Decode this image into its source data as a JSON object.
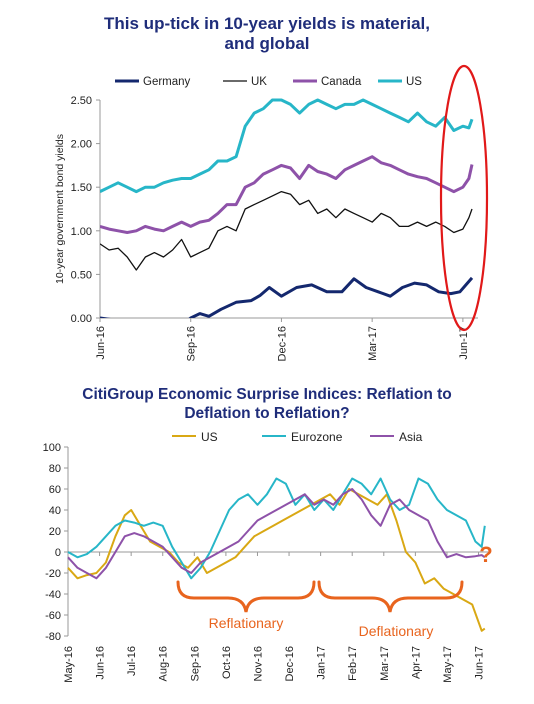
{
  "chart_data": [
    {
      "type": "line",
      "title": "This up-tick in 10-year yields is material,\nand global",
      "title_lines": [
        "This up-tick in 10-year yields is material,",
        "and global"
      ],
      "ylabel": "10-year government bond yields",
      "xlabel": "",
      "ylim": [
        0,
        2.5
      ],
      "yticks": [
        "0.00",
        "0.50",
        "1.00",
        "1.50",
        "2.00",
        "2.50"
      ],
      "xlim": [
        0,
        12.5
      ],
      "xticks": [
        {
          "label": "Jun-16",
          "x": 0
        },
        {
          "label": "Sep-16",
          "x": 3
        },
        {
          "label": "Dec-16",
          "x": 6
        },
        {
          "label": "Mar-17",
          "x": 9
        },
        {
          "label": "Jun-17",
          "x": 12
        }
      ],
      "legend_position": "top",
      "grid": false,
      "colors": {
        "Germany": "#14286e",
        "UK": "#111111",
        "Canada": "#8e52a9",
        "US": "#27b6c8"
      },
      "series": [
        {
          "name": "Germany",
          "x": [
            0,
            0.4,
            0.8,
            1.2,
            1.6,
            2.0,
            2.4,
            2.8,
            3.0,
            3.3,
            3.6,
            4.0,
            4.5,
            5.0,
            5.3,
            5.6,
            6.0,
            6.5,
            7.0,
            7.5,
            8.0,
            8.4,
            8.8,
            9.2,
            9.6,
            10.0,
            10.4,
            10.8,
            11.2,
            11.6,
            11.9,
            12.1,
            12.3
          ],
          "values": [
            0.0,
            -0.02,
            -0.05,
            -0.12,
            -0.15,
            -0.12,
            -0.1,
            -0.06,
            0.0,
            0.05,
            0.02,
            0.1,
            0.18,
            0.2,
            0.26,
            0.35,
            0.25,
            0.35,
            0.38,
            0.3,
            0.3,
            0.45,
            0.35,
            0.3,
            0.25,
            0.35,
            0.4,
            0.38,
            0.3,
            0.28,
            0.3,
            0.38,
            0.46
          ]
        },
        {
          "name": "UK",
          "x": [
            0,
            0.3,
            0.6,
            0.9,
            1.2,
            1.5,
            1.8,
            2.1,
            2.4,
            2.7,
            3.0,
            3.3,
            3.6,
            3.9,
            4.2,
            4.5,
            4.8,
            5.1,
            5.4,
            5.7,
            6.0,
            6.3,
            6.6,
            6.9,
            7.2,
            7.5,
            7.8,
            8.1,
            8.4,
            8.7,
            9.0,
            9.3,
            9.6,
            9.9,
            10.2,
            10.5,
            10.8,
            11.1,
            11.4,
            11.7,
            12.0,
            12.2,
            12.3
          ],
          "values": [
            0.85,
            0.78,
            0.8,
            0.7,
            0.55,
            0.7,
            0.75,
            0.7,
            0.78,
            0.9,
            0.7,
            0.75,
            0.8,
            1.0,
            1.05,
            1.0,
            1.25,
            1.3,
            1.35,
            1.4,
            1.45,
            1.42,
            1.3,
            1.35,
            1.2,
            1.25,
            1.15,
            1.25,
            1.2,
            1.15,
            1.1,
            1.2,
            1.15,
            1.05,
            1.05,
            1.1,
            1.05,
            1.1,
            1.05,
            0.98,
            1.02,
            1.15,
            1.25
          ]
        },
        {
          "name": "Canada",
          "x": [
            0,
            0.3,
            0.6,
            0.9,
            1.2,
            1.5,
            1.8,
            2.1,
            2.4,
            2.7,
            3.0,
            3.3,
            3.6,
            3.9,
            4.2,
            4.5,
            4.8,
            5.1,
            5.4,
            5.7,
            6.0,
            6.3,
            6.6,
            6.9,
            7.2,
            7.5,
            7.8,
            8.1,
            8.4,
            8.7,
            9.0,
            9.3,
            9.6,
            9.9,
            10.2,
            10.5,
            10.8,
            11.1,
            11.4,
            11.7,
            12.0,
            12.2,
            12.3
          ],
          "values": [
            1.05,
            1.02,
            1.0,
            0.98,
            1.0,
            1.05,
            1.02,
            1.0,
            1.05,
            1.1,
            1.05,
            1.1,
            1.12,
            1.2,
            1.3,
            1.3,
            1.5,
            1.55,
            1.65,
            1.7,
            1.75,
            1.72,
            1.6,
            1.75,
            1.68,
            1.65,
            1.6,
            1.7,
            1.75,
            1.8,
            1.85,
            1.78,
            1.75,
            1.7,
            1.65,
            1.62,
            1.6,
            1.55,
            1.5,
            1.45,
            1.5,
            1.6,
            1.76
          ]
        },
        {
          "name": "US",
          "x": [
            0,
            0.3,
            0.6,
            0.9,
            1.2,
            1.5,
            1.8,
            2.1,
            2.4,
            2.7,
            3.0,
            3.3,
            3.6,
            3.9,
            4.2,
            4.5,
            4.8,
            5.1,
            5.4,
            5.7,
            6.0,
            6.3,
            6.6,
            6.9,
            7.2,
            7.5,
            7.8,
            8.1,
            8.4,
            8.7,
            9.0,
            9.3,
            9.6,
            9.9,
            10.2,
            10.5,
            10.8,
            11.1,
            11.4,
            11.7,
            12.0,
            12.2,
            12.3
          ],
          "values": [
            1.45,
            1.5,
            1.55,
            1.5,
            1.45,
            1.5,
            1.5,
            1.55,
            1.58,
            1.6,
            1.6,
            1.65,
            1.7,
            1.8,
            1.8,
            1.85,
            2.2,
            2.35,
            2.4,
            2.5,
            2.5,
            2.45,
            2.35,
            2.45,
            2.5,
            2.45,
            2.4,
            2.45,
            2.45,
            2.5,
            2.45,
            2.4,
            2.35,
            2.3,
            2.25,
            2.35,
            2.25,
            2.2,
            2.3,
            2.15,
            2.2,
            2.18,
            2.28
          ]
        }
      ],
      "annotations": [
        {
          "type": "ellipse",
          "color": "#e11919",
          "label": ""
        }
      ]
    },
    {
      "type": "line",
      "title": "CitiGroup Economic Surprise Indices: Reflation to\nDeflation to Reflation?",
      "title_lines": [
        "CitiGroup Economic Surprise Indices: Reflation to",
        "Deflation to Reflation?"
      ],
      "xlabel": "",
      "ylabel": "",
      "ylim": [
        -80,
        100
      ],
      "yticks": [
        "100",
        "80",
        "60",
        "40",
        "20",
        "0",
        "-20",
        "-40",
        "-60",
        "-80"
      ],
      "xlim": [
        0,
        13.3
      ],
      "xticks": [
        "May-16",
        "Jun-16",
        "Jul-16",
        "Aug-16",
        "Sep-16",
        "Oct-16",
        "Nov-16",
        "Dec-16",
        "Jan-17",
        "Feb-17",
        "Mar-17",
        "Apr-17",
        "May-17",
        "Jun-17"
      ],
      "legend_position": "top",
      "grid": false,
      "colors": {
        "US": "#d9a814",
        "Eurozone": "#27b6c8",
        "Asia": "#8e52a9"
      },
      "series": [
        {
          "name": "US",
          "x": [
            0,
            0.3,
            0.6,
            0.9,
            1.2,
            1.5,
            1.8,
            2.0,
            2.3,
            2.6,
            2.9,
            3.2,
            3.5,
            3.8,
            4.1,
            4.4,
            4.7,
            5.0,
            5.3,
            5.6,
            5.9,
            6.2,
            6.5,
            6.8,
            7.1,
            7.4,
            7.7,
            8.0,
            8.3,
            8.6,
            8.9,
            9.2,
            9.5,
            9.8,
            10.1,
            10.4,
            10.7,
            11.0,
            11.3,
            11.6,
            11.9,
            12.2,
            12.5,
            12.8,
            13.1,
            13.2
          ],
          "values": [
            -15,
            -25,
            -22,
            -20,
            -10,
            15,
            35,
            40,
            25,
            10,
            5,
            0,
            -10,
            -15,
            -5,
            -20,
            -15,
            -10,
            -5,
            5,
            15,
            20,
            25,
            30,
            35,
            40,
            45,
            50,
            55,
            45,
            60,
            55,
            50,
            45,
            55,
            30,
            0,
            -10,
            -30,
            -25,
            -35,
            -40,
            -45,
            -50,
            -75,
            -73
          ]
        },
        {
          "name": "Eurozone",
          "x": [
            0,
            0.3,
            0.6,
            0.9,
            1.2,
            1.5,
            1.8,
            2.1,
            2.4,
            2.7,
            3.0,
            3.3,
            3.6,
            3.9,
            4.2,
            4.5,
            4.8,
            5.1,
            5.4,
            5.7,
            6.0,
            6.3,
            6.6,
            6.9,
            7.2,
            7.5,
            7.8,
            8.1,
            8.4,
            8.7,
            9.0,
            9.3,
            9.6,
            9.9,
            10.2,
            10.5,
            10.8,
            11.1,
            11.4,
            11.7,
            12.0,
            12.3,
            12.6,
            12.9,
            13.1,
            13.2
          ],
          "values": [
            0,
            -5,
            -2,
            5,
            15,
            25,
            30,
            28,
            25,
            28,
            25,
            5,
            -10,
            -25,
            -15,
            0,
            20,
            40,
            50,
            55,
            45,
            55,
            70,
            65,
            45,
            55,
            40,
            50,
            40,
            55,
            70,
            65,
            55,
            70,
            50,
            40,
            45,
            70,
            65,
            50,
            40,
            35,
            30,
            10,
            5,
            25
          ]
        },
        {
          "name": "Asia",
          "x": [
            0,
            0.3,
            0.6,
            0.9,
            1.2,
            1.5,
            1.8,
            2.1,
            2.4,
            2.7,
            3.0,
            3.3,
            3.6,
            3.9,
            4.2,
            4.5,
            4.8,
            5.1,
            5.4,
            5.7,
            6.0,
            6.3,
            6.6,
            6.9,
            7.2,
            7.5,
            7.8,
            8.1,
            8.4,
            8.7,
            9.0,
            9.3,
            9.6,
            9.9,
            10.2,
            10.5,
            10.8,
            11.1,
            11.4,
            11.7,
            12.0,
            12.3,
            12.6,
            12.9,
            13.1,
            13.2
          ],
          "values": [
            -5,
            -15,
            -20,
            -25,
            -15,
            0,
            15,
            18,
            15,
            10,
            5,
            -5,
            -15,
            -20,
            -10,
            -5,
            0,
            5,
            10,
            20,
            30,
            35,
            40,
            45,
            50,
            55,
            45,
            50,
            45,
            55,
            60,
            50,
            35,
            25,
            45,
            50,
            40,
            35,
            30,
            10,
            -5,
            -2,
            -5,
            -4,
            -3,
            -5
          ]
        }
      ],
      "annotations": [
        {
          "text": "Reflationary",
          "color": "#e8641e"
        },
        {
          "text": "Deflationary",
          "color": "#e8641e"
        },
        {
          "text": "?",
          "color": "#e8641e"
        }
      ]
    }
  ]
}
